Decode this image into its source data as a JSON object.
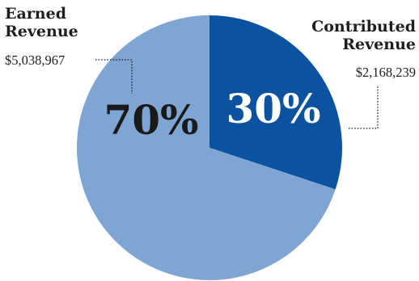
{
  "chart_data": {
    "type": "pie",
    "title": "",
    "slices": [
      {
        "label": "Contributed Revenue",
        "amount": "$2,168,239",
        "value": 2168239,
        "percent_label": "30%",
        "color": "#0b52a0"
      },
      {
        "label": "Earned Revenue",
        "amount": "$5,038,967",
        "value": 5038967,
        "percent_label": "70%",
        "color": "#7fa6d3"
      }
    ],
    "start_angle_deg": 0,
    "direction": "clockwise",
    "label_colors": {
      "inside_dark_slice": "#ffffff",
      "inside_light_slice": "#1a1a1a"
    }
  },
  "callouts": {
    "earned": {
      "title_line1": "Earned",
      "title_line2": "Revenue",
      "amount": "$5,038,967"
    },
    "contributed": {
      "title_line1": "Contributed",
      "title_line2": "Revenue",
      "amount": "$2,168,239"
    }
  }
}
